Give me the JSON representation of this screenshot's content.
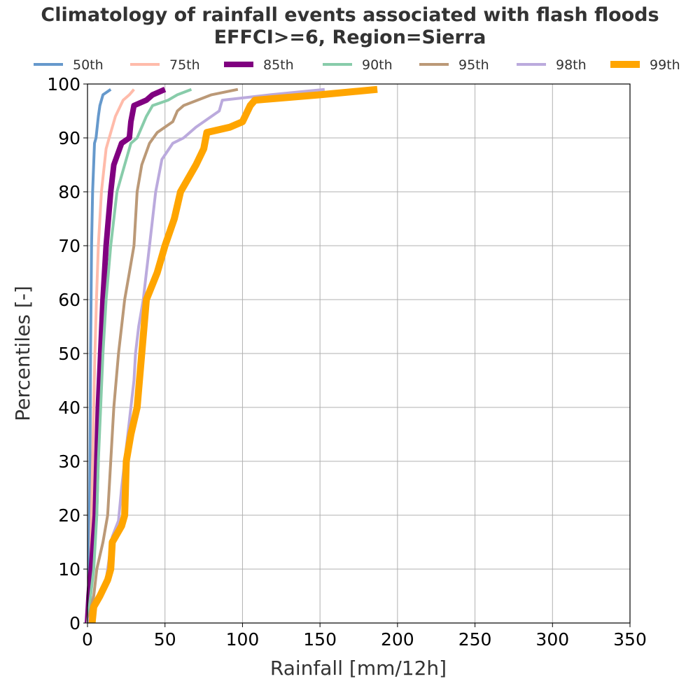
{
  "chart_data": {
    "type": "line",
    "title": "Climatology of rainfall events associated with flash floods",
    "subtitle": "EFFCI>=6, Region=Sierra",
    "xlabel": "Rainfall [mm/12h]",
    "ylabel": "Percentiles [-]",
    "xlim": [
      0,
      350
    ],
    "ylim": [
      0,
      100
    ],
    "xticks": [
      "0",
      "50",
      "100",
      "150",
      "200",
      "250",
      "300",
      "350"
    ],
    "yticks": [
      "0",
      "10",
      "20",
      "30",
      "40",
      "50",
      "60",
      "70",
      "80",
      "90",
      "100"
    ],
    "grid": true,
    "legend_position": "top",
    "series": [
      {
        "name": "50th",
        "color": "#6699cc",
        "points": [
          [
            0,
            0
          ],
          [
            0.5,
            5
          ],
          [
            1,
            10
          ],
          [
            1.3,
            20
          ],
          [
            1.6,
            30
          ],
          [
            1.8,
            40
          ],
          [
            2,
            50
          ],
          [
            2.3,
            60
          ],
          [
            2.6,
            70
          ],
          [
            3.3,
            80
          ],
          [
            4.5,
            89
          ],
          [
            5.5,
            90
          ],
          [
            7,
            94
          ],
          [
            8,
            96
          ],
          [
            10,
            98
          ],
          [
            15,
            99
          ]
        ]
      },
      {
        "name": "75th",
        "color": "#ffbbaa",
        "points": [
          [
            0,
            0
          ],
          [
            1,
            5
          ],
          [
            2,
            10
          ],
          [
            2.6,
            20
          ],
          [
            3.3,
            30
          ],
          [
            4,
            40
          ],
          [
            4.8,
            50
          ],
          [
            5.8,
            60
          ],
          [
            7,
            70
          ],
          [
            9,
            80
          ],
          [
            12,
            88
          ],
          [
            14,
            90
          ],
          [
            18,
            94
          ],
          [
            23,
            97
          ],
          [
            27,
            98
          ],
          [
            30,
            99
          ]
        ]
      },
      {
        "name": "85th",
        "color": "#800080",
        "points": [
          [
            0,
            0
          ],
          [
            1,
            5
          ],
          [
            2.5,
            10
          ],
          [
            5,
            20
          ],
          [
            6,
            30
          ],
          [
            7,
            40
          ],
          [
            8.5,
            50
          ],
          [
            10,
            60
          ],
          [
            12,
            70
          ],
          [
            15,
            80
          ],
          [
            17,
            85
          ],
          [
            22,
            89
          ],
          [
            27,
            90
          ],
          [
            28,
            93
          ],
          [
            30,
            96
          ],
          [
            38,
            97
          ],
          [
            42,
            98
          ],
          [
            50,
            99
          ]
        ]
      },
      {
        "name": "90th",
        "color": "#88ccaa",
        "points": [
          [
            0,
            0
          ],
          [
            2,
            5
          ],
          [
            4,
            10
          ],
          [
            6,
            20
          ],
          [
            7,
            30
          ],
          [
            8.5,
            40
          ],
          [
            10,
            50
          ],
          [
            12,
            60
          ],
          [
            15,
            70
          ],
          [
            19,
            80
          ],
          [
            24,
            85
          ],
          [
            28,
            89
          ],
          [
            32,
            90
          ],
          [
            35,
            92
          ],
          [
            38,
            94
          ],
          [
            42,
            96
          ],
          [
            52,
            97
          ],
          [
            58,
            98
          ],
          [
            67,
            99
          ]
        ]
      },
      {
        "name": "95th",
        "color": "#bb9977",
        "points": [
          [
            0,
            0
          ],
          [
            4,
            5
          ],
          [
            6,
            10
          ],
          [
            10,
            15
          ],
          [
            13,
            20
          ],
          [
            15,
            30
          ],
          [
            17,
            40
          ],
          [
            20,
            50
          ],
          [
            24,
            60
          ],
          [
            27,
            65
          ],
          [
            30,
            70
          ],
          [
            32,
            80
          ],
          [
            35,
            85
          ],
          [
            40,
            89
          ],
          [
            45,
            91
          ],
          [
            55,
            93
          ],
          [
            58,
            95
          ],
          [
            62,
            96
          ],
          [
            80,
            98
          ],
          [
            97,
            99
          ]
        ]
      },
      {
        "name": "98th",
        "color": "#bbaadd",
        "points": [
          [
            0,
            0
          ],
          [
            5,
            3
          ],
          [
            9,
            6
          ],
          [
            12,
            8
          ],
          [
            14,
            12
          ],
          [
            16,
            16
          ],
          [
            20,
            19
          ],
          [
            22,
            25
          ],
          [
            24,
            30
          ],
          [
            26,
            35
          ],
          [
            28,
            40
          ],
          [
            30,
            45
          ],
          [
            31,
            50
          ],
          [
            33,
            55
          ],
          [
            36,
            60
          ],
          [
            38,
            65
          ],
          [
            40,
            70
          ],
          [
            44,
            80
          ],
          [
            48,
            86
          ],
          [
            55,
            89
          ],
          [
            62,
            90
          ],
          [
            70,
            92
          ],
          [
            85,
            95
          ],
          [
            87,
            97
          ],
          [
            118,
            98
          ],
          [
            153,
            99
          ]
        ]
      },
      {
        "name": "99th",
        "color": "#ffa500",
        "points": [
          [
            3,
            0
          ],
          [
            4,
            3
          ],
          [
            8,
            5
          ],
          [
            13,
            8
          ],
          [
            15,
            10
          ],
          [
            16,
            15
          ],
          [
            22,
            18
          ],
          [
            24,
            20
          ],
          [
            25,
            30
          ],
          [
            28,
            35
          ],
          [
            32,
            40
          ],
          [
            35,
            50
          ],
          [
            38,
            60
          ],
          [
            45,
            65
          ],
          [
            50,
            70
          ],
          [
            56,
            75
          ],
          [
            60,
            80
          ],
          [
            70,
            85
          ],
          [
            75,
            88
          ],
          [
            77,
            91
          ],
          [
            92,
            92
          ],
          [
            100,
            93
          ],
          [
            105,
            96
          ],
          [
            108,
            97
          ],
          [
            150,
            98
          ],
          [
            187,
            99
          ]
        ]
      }
    ]
  }
}
